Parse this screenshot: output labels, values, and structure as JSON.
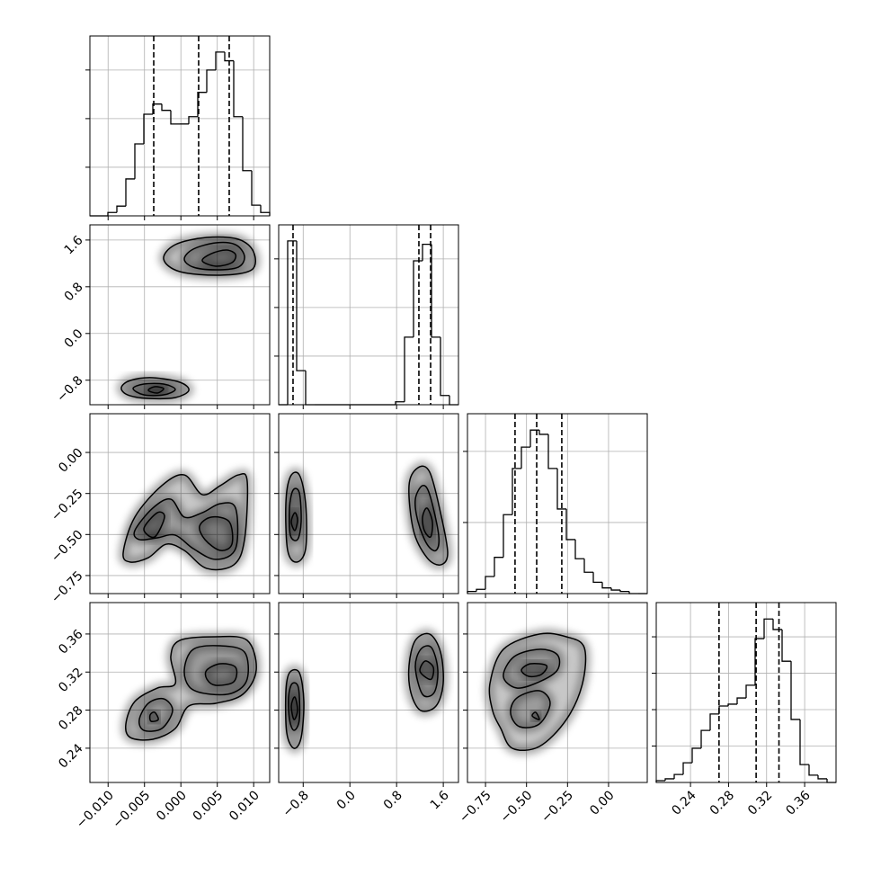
{
  "chart_data": {
    "type": "corner",
    "grid": true,
    "color": "#000000",
    "params": [
      {
        "xlim": [
          -0.0125,
          0.0122
        ],
        "xticks": [
          {
            "value": -0.01,
            "label": "−0.010"
          },
          {
            "value": -0.005,
            "label": "−0.005"
          },
          {
            "value": 0,
            "label": "0.000"
          },
          {
            "value": 0.005,
            "label": "0.005"
          },
          {
            "value": 0.01,
            "label": "0.010"
          }
        ],
        "bins": [
          -0.0125,
          -0.011265,
          -0.01003,
          -0.008795,
          -0.00756,
          -0.006325,
          -0.00509,
          -0.003855,
          -0.00262,
          -0.001385,
          -0.00015,
          0.001085,
          0.00232,
          0.003555,
          0.00479,
          0.006025,
          0.00726,
          0.008495,
          0.00973,
          0.010965,
          0.0122
        ],
        "values": [
          0,
          0,
          0.07,
          0.2,
          0.76,
          1.48,
          2.09,
          2.3,
          2.17,
          1.89,
          1.89,
          2.04,
          2.54,
          3.0,
          3.37,
          3.19,
          2.04,
          0.93,
          0.22,
          0.07
        ],
        "ylim": [
          0,
          3.7
        ],
        "yticks": [
          1,
          2,
          3
        ],
        "quantiles": [
          -0.00373,
          0.00244,
          0.00664
        ]
      },
      {
        "xlim": [
          -1.22,
          1.86
        ],
        "xticks": [
          {
            "value": -0.8,
            "label": "−0.8"
          },
          {
            "value": 0,
            "label": "0.0"
          },
          0.8,
          1.6
        ],
        "bins": [
          -1.22,
          -1.066,
          -0.912,
          -0.758,
          -0.604,
          -0.45,
          -0.296,
          -0.142,
          0.012,
          0.166,
          0.32,
          0.474,
          0.628,
          0.782,
          0.936,
          1.09,
          1.244,
          1.398,
          1.552,
          1.706,
          1.86
        ],
        "values": [
          0,
          3.37,
          0.7,
          0,
          0,
          0,
          0,
          0,
          0,
          0,
          0,
          0,
          0,
          0.06,
          1.39,
          2.96,
          3.3,
          1.39,
          0.19,
          0
        ],
        "ylim": [
          0,
          3.7
        ],
        "yticks": [
          1,
          2,
          3
        ],
        "quantiles": [
          -0.974,
          1.182,
          1.383
        ]
      },
      {
        "xlim": [
          -0.86,
          0.236
        ],
        "xticks": [
          {
            "value": -0.75,
            "label": "−0.75"
          },
          {
            "value": -0.5,
            "label": "−0.50"
          },
          {
            "value": -0.25,
            "label": "−0.25"
          },
          {
            "value": 0,
            "label": "0.00"
          }
        ],
        "bins": [
          -0.86,
          -0.8052,
          -0.7504,
          -0.6956,
          -0.6408,
          -0.586,
          -0.5312,
          -0.4764,
          -0.4216,
          -0.3668,
          -0.312,
          -0.2572,
          -0.2024,
          -0.1476,
          -0.0928,
          -0.038,
          0.0168,
          0.0716,
          0.1264,
          0.1812,
          0.236
        ],
        "values": [
          0.03,
          0.06,
          0.24,
          0.51,
          1.11,
          1.76,
          2.06,
          2.3,
          2.24,
          1.76,
          1.19,
          0.76,
          0.49,
          0.3,
          0.16,
          0.08,
          0.05,
          0.03,
          0,
          0
        ],
        "ylim": [
          0,
          2.53
        ],
        "yticks": [
          1,
          2
        ],
        "quantiles": [
          -0.57,
          -0.438,
          -0.285
        ]
      },
      {
        "xlim": [
          0.204,
          0.393
        ],
        "xticks": [
          0.24,
          0.28,
          0.32,
          0.36
        ],
        "bins": [
          0.204,
          0.21345,
          0.2229,
          0.23235,
          0.2418,
          0.25125,
          0.2607,
          0.27015,
          0.2796,
          0.28905,
          0.2985,
          0.30795,
          0.3174,
          0.32685,
          0.3363,
          0.34575,
          0.3552,
          0.36465,
          0.3741,
          0.38355,
          0.393
        ],
        "values": [
          0.05,
          0.1,
          0.22,
          0.54,
          0.94,
          1.43,
          1.88,
          2.1,
          2.15,
          2.32,
          2.67,
          3.95,
          4.49,
          4.2,
          3.33,
          1.73,
          0.49,
          0.2,
          0.1,
          0
        ],
        "ylim": [
          0,
          4.94
        ],
        "yticks": [
          1,
          2,
          3,
          4
        ],
        "quantiles": [
          0.27,
          0.309,
          0.333
        ]
      }
    ],
    "pairs": [
      [
        {
          "contours": [
            {
              "x": [
                -0.00237,
                -0.00077,
                0.00356,
                0.00788,
                0.00998,
                0.00973,
                0.00541,
                -0.00015
              ],
              "y": [
                1.275,
                1.521,
                1.644,
                1.614,
                1.398,
                1.09,
                0.998,
                1.059
              ]
            },
            {
              "x": [
                0.00047,
                0.0017,
                0.00479,
                0.00751,
                0.00874,
                0.00788,
                0.00479,
                0.0017
              ],
              "y": [
                1.275,
                1.444,
                1.552,
                1.521,
                1.321,
                1.136,
                1.09,
                1.136
              ]
            },
            {
              "x": [
                0.00294,
                0.00417,
                0.00627,
                0.00751,
                0.00701,
                0.00479
              ],
              "y": [
                1.244,
                1.367,
                1.429,
                1.352,
                1.213,
                1.152
              ]
            },
            {
              "x": [
                -0.00818,
                -0.00694,
                -0.00386,
                -0.00015,
                0.00109,
                -0.00077,
                -0.00447,
                -0.00731
              ],
              "y": [
                -0.927,
                -0.804,
                -0.758,
                -0.835,
                -0.974,
                -1.097,
                -1.112,
                -1.051
              ]
            },
            {
              "x": [
                -0.00657,
                -0.00509,
                -0.00237,
                -0.00077,
                -0.00237,
                -0.00509
              ],
              "y": [
                -0.943,
                -0.866,
                -0.866,
                -0.958,
                -1.051,
                -1.051
              ]
            },
            {
              "x": [
                -0.00447,
                -0.00361,
                -0.00237,
                -0.00324
              ],
              "y": [
                -0.974,
                -0.912,
                -0.943,
                -1.02
              ]
            }
          ]
        }
      ],
      [
        {
          "contours": [
            {
              "x": [
                -0.00793,
                -0.00633,
                -0.00262,
                0.00047,
                0.00294,
                0.00541,
                0.00788,
                0.00911,
                0.00874,
                0.00726,
                0.00356,
                0.00047,
                -0.002,
                -0.00447,
                -0.00694
              ],
              "y": [
                -0.613,
                -0.394,
                -0.202,
                -0.137,
                -0.257,
                -0.202,
                -0.137,
                -0.175,
                -0.531,
                -0.685,
                -0.707,
                -0.597,
                -0.559,
                -0.641,
                -0.668
              ]
            },
            {
              "x": [
                -0.00633,
                -0.00386,
                -0.00139,
                0.00047,
                0.00294,
                0.00541,
                0.00751,
                0.00751,
                0.00479,
                0.0017,
                -0.00077,
                -0.00324,
                -0.00571
              ],
              "y": [
                -0.476,
                -0.339,
                -0.285,
                -0.394,
                -0.367,
                -0.312,
                -0.339,
                -0.586,
                -0.652,
                -0.586,
                -0.504,
                -0.52,
                -0.531
              ]
            },
            {
              "x": [
                -0.00509,
                -0.00324,
                -0.00225,
                -0.00361
              ],
              "y": [
                -0.465,
                -0.367,
                -0.394,
                -0.515
              ]
            },
            {
              "x": [
                0.00257,
                0.00417,
                0.00664,
                0.00701,
                0.00541,
                0.00331
              ],
              "y": [
                -0.449,
                -0.394,
                -0.422,
                -0.559,
                -0.597,
                -0.531
              ]
            }
          ]
        },
        {
          "contours": [
            {
              "x": [
                -1.097,
                -1.02,
                -0.866,
                -0.758,
                -0.758,
                -0.912,
                -1.066
              ],
              "y": [
                -0.312,
                -0.148,
                -0.137,
                -0.312,
                -0.586,
                -0.668,
                -0.597
              ]
            },
            {
              "x": [
                -1.035,
                -0.974,
                -0.866,
                -0.835,
                -0.897,
                -1.02
              ],
              "y": [
                -0.339,
                -0.23,
                -0.246,
                -0.422,
                -0.531,
                -0.504
              ]
            },
            {
              "x": [
                -1.004,
                -0.943,
                -0.897,
                -0.943
              ],
              "y": [
                -0.422,
                -0.367,
                -0.411,
                -0.476
              ]
            },
            {
              "x": [
                1.013,
                1.167,
                1.367,
                1.552,
                1.675,
                1.552,
                1.321,
                1.09
              ],
              "y": [
                -0.202,
                -0.093,
                -0.12,
                -0.367,
                -0.613,
                -0.685,
                -0.641,
                -0.476
              ]
            },
            {
              "x": [
                1.121,
                1.244,
                1.367,
                1.521,
                1.475,
                1.321,
                1.167
              ],
              "y": [
                -0.285,
                -0.202,
                -0.257,
                -0.504,
                -0.597,
                -0.559,
                -0.422
              ]
            },
            {
              "x": [
                1.244,
                1.321,
                1.413,
                1.383,
                1.275
              ],
              "y": [
                -0.394,
                -0.339,
                -0.422,
                -0.515,
                -0.476
              ]
            }
          ]
        }
      ],
      [
        {
          "contours": [
            {
              "x": [
                -0.00756,
                -0.00633,
                -0.00324,
                -0.00077,
                -0.00139,
                -0.00015,
                0.00479,
                0.00911,
                0.01035,
                0.0085,
                0.00479,
                0.00109,
                -0.00077,
                -0.00386,
                -0.00694
              ],
              "y": [
                0.2654,
                0.289,
                0.3032,
                0.3079,
                0.3363,
                0.3533,
                0.3571,
                0.3533,
                0.3221,
                0.2966,
                0.2872,
                0.2843,
                0.2607,
                0.2494,
                0.2512
              ]
            },
            {
              "x": [
                0.00047,
                0.0017,
                0.00541,
                0.00874,
                0.00911,
                0.00726,
                0.00417,
                0.00133
              ],
              "y": [
                0.3221,
                0.3439,
                0.3476,
                0.341,
                0.3127,
                0.2985,
                0.2966,
                0.3032
              ]
            },
            {
              "x": [
                -0.00571,
                -0.00447,
                -0.00237,
                -0.00114,
                -0.00262,
                -0.00509
              ],
              "y": [
                0.2701,
                0.2872,
                0.2919,
                0.2796,
                0.2607,
                0.2588
              ]
            },
            {
              "x": [
                0.00356,
                0.00541,
                0.00751,
                0.00726,
                0.00479,
                0.00356
              ],
              "y": [
                0.3221,
                0.3287,
                0.325,
                0.3098,
                0.3061,
                0.3127
              ]
            },
            {
              "x": [
                -0.00423,
                -0.00361,
                -0.00311,
                -0.0041
              ],
              "y": [
                0.2749,
                0.2777,
                0.2701,
                0.2683
              ]
            }
          ]
        },
        {
          "contours": [
            {
              "x": [
                -1.097,
                -1.035,
                -0.866,
                -0.789,
                -0.835,
                -0.958,
                -1.081
              ],
              "y": [
                0.2985,
                0.3193,
                0.3193,
                0.289,
                0.2512,
                0.2399,
                0.256
              ]
            },
            {
              "x": [
                -1.051,
                -0.989,
                -0.881,
                -0.866,
                -0.958,
                -1.035
              ],
              "y": [
                0.2938,
                0.3079,
                0.3032,
                0.2701,
                0.2588,
                0.2701
              ]
            },
            {
              "x": [
                -1.004,
                -0.943,
                -0.897,
                -0.958
              ],
              "y": [
                0.2843,
                0.2938,
                0.2796,
                0.2701
              ]
            },
            {
              "x": [
                1.013,
                1.121,
                1.367,
                1.552,
                1.598,
                1.475,
                1.213,
                1.044
              ],
              "y": [
                0.3268,
                0.3533,
                0.3599,
                0.341,
                0.3079,
                0.2843,
                0.2796,
                0.2985
              ]
            },
            {
              "x": [
                1.121,
                1.213,
                1.398,
                1.506,
                1.444,
                1.244
              ],
              "y": [
                0.325,
                0.3439,
                0.3457,
                0.3221,
                0.2985,
                0.2966
              ]
            },
            {
              "x": [
                1.198,
                1.29,
                1.429,
                1.398,
                1.275
              ],
              "y": [
                0.3221,
                0.3316,
                0.325,
                0.3127,
                0.3155
              ]
            }
          ]
        },
        {
          "contours": [
            {
              "x": [
                -0.723,
                -0.641,
                -0.422,
                -0.257,
                -0.148,
                -0.159,
                -0.257,
                -0.422,
                -0.586,
                -0.657,
                -0.707
              ],
              "y": [
                0.3079,
                0.3439,
                0.3599,
                0.3571,
                0.3457,
                0.3079,
                0.2701,
                0.2418,
                0.2399,
                0.2607,
                0.2796
              ]
            },
            {
              "x": [
                -0.641,
                -0.575,
                -0.422,
                -0.312,
                -0.312,
                -0.422,
                -0.559
              ],
              "y": [
                0.3155,
                0.3363,
                0.3439,
                0.3382,
                0.3221,
                0.3098,
                0.3032
              ]
            },
            {
              "x": [
                -0.597,
                -0.559,
                -0.422,
                -0.356,
                -0.422,
                -0.542
              ],
              "y": [
                0.2768,
                0.2928,
                0.3004,
                0.2872,
                0.2654,
                0.2626
              ]
            },
            {
              "x": [
                -0.531,
                -0.476,
                -0.378,
                -0.411,
                -0.487
              ],
              "y": [
                0.3221,
                0.3287,
                0.3268,
                0.3174,
                0.3155
              ]
            },
            {
              "x": [
                -0.465,
                -0.444,
                -0.422
              ],
              "y": [
                0.2739,
                0.2777,
                0.2701
              ]
            }
          ]
        }
      ]
    ]
  }
}
